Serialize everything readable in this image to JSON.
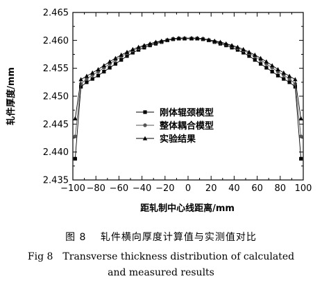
{
  "chart_data": {
    "type": "line",
    "title": "",
    "xlabel": "距轧制中心线距离/mm",
    "ylabel": "轧件厚度/mm",
    "xlim": [
      -100,
      100
    ],
    "ylim": [
      2.435,
      2.465
    ],
    "xticks": [
      "−100",
      "−80",
      "−60",
      "−40",
      "−20",
      "0",
      "20",
      "40",
      "60",
      "80",
      "100"
    ],
    "yticks": [
      "2.435",
      "2.440",
      "2.445",
      "2.450",
      "2.455",
      "2.460",
      "2.465"
    ],
    "grid": false,
    "legend_position": "lower-middle",
    "x": [
      -98,
      -93,
      -88,
      -83,
      -78,
      -73,
      -68,
      -63,
      -58,
      -53,
      -48,
      -43,
      -38,
      -33,
      -28,
      -23,
      -18,
      -13,
      -8,
      -3,
      3,
      8,
      13,
      18,
      23,
      28,
      33,
      38,
      43,
      48,
      53,
      58,
      63,
      68,
      73,
      78,
      83,
      88,
      93,
      98
    ],
    "series": [
      {
        "name": "刚体辊颈模型",
        "marker": "square",
        "color": "#000000",
        "values": [
          2.4388,
          2.4517,
          2.4525,
          2.4531,
          2.4537,
          2.4544,
          2.4551,
          2.4558,
          2.4565,
          2.4572,
          2.4578,
          2.4583,
          2.4587,
          2.4591,
          2.4594,
          2.4597,
          2.46,
          2.4602,
          2.4603,
          2.4603,
          2.4603,
          2.4603,
          2.4602,
          2.46,
          2.4597,
          2.4594,
          2.4591,
          2.4587,
          2.4583,
          2.4578,
          2.4572,
          2.4565,
          2.4558,
          2.4551,
          2.4544,
          2.4537,
          2.4531,
          2.4525,
          2.4517,
          2.4388
        ]
      },
      {
        "name": "整体耦合模型",
        "marker": "circle",
        "color": "#555555",
        "values": [
          2.4428,
          2.4522,
          2.4531,
          2.4538,
          2.4544,
          2.4551,
          2.4558,
          2.4565,
          2.4571,
          2.4577,
          2.4582,
          2.4586,
          2.459,
          2.4593,
          2.4596,
          2.4598,
          2.46,
          2.4602,
          2.4603,
          2.4603,
          2.4603,
          2.4603,
          2.4602,
          2.46,
          2.4598,
          2.4596,
          2.4593,
          2.459,
          2.4586,
          2.4582,
          2.4577,
          2.4571,
          2.4565,
          2.4558,
          2.4551,
          2.4544,
          2.4538,
          2.4531,
          2.4522,
          2.4428
        ]
      },
      {
        "name": "实验结果",
        "marker": "triangle",
        "color": "#000000",
        "values": [
          2.446,
          2.453,
          2.4536,
          2.4542,
          2.4548,
          2.4555,
          2.4562,
          2.4568,
          2.4574,
          2.4579,
          2.4584,
          2.4588,
          2.4591,
          2.4594,
          2.4597,
          2.4599,
          2.4601,
          2.4603,
          2.4604,
          2.4604,
          2.4604,
          2.4604,
          2.4603,
          2.4601,
          2.4599,
          2.4597,
          2.4594,
          2.4591,
          2.4588,
          2.4584,
          2.4579,
          2.4574,
          2.4568,
          2.4562,
          2.4555,
          2.4548,
          2.4542,
          2.4536,
          2.453,
          2.446
        ]
      }
    ]
  },
  "caption": {
    "cn": "图 8　 轧件横向厚度计算值与实测值对比",
    "en_line1": "Fig 8　Transverse thickness distribution of calculated",
    "en_line2": "and measured results"
  }
}
